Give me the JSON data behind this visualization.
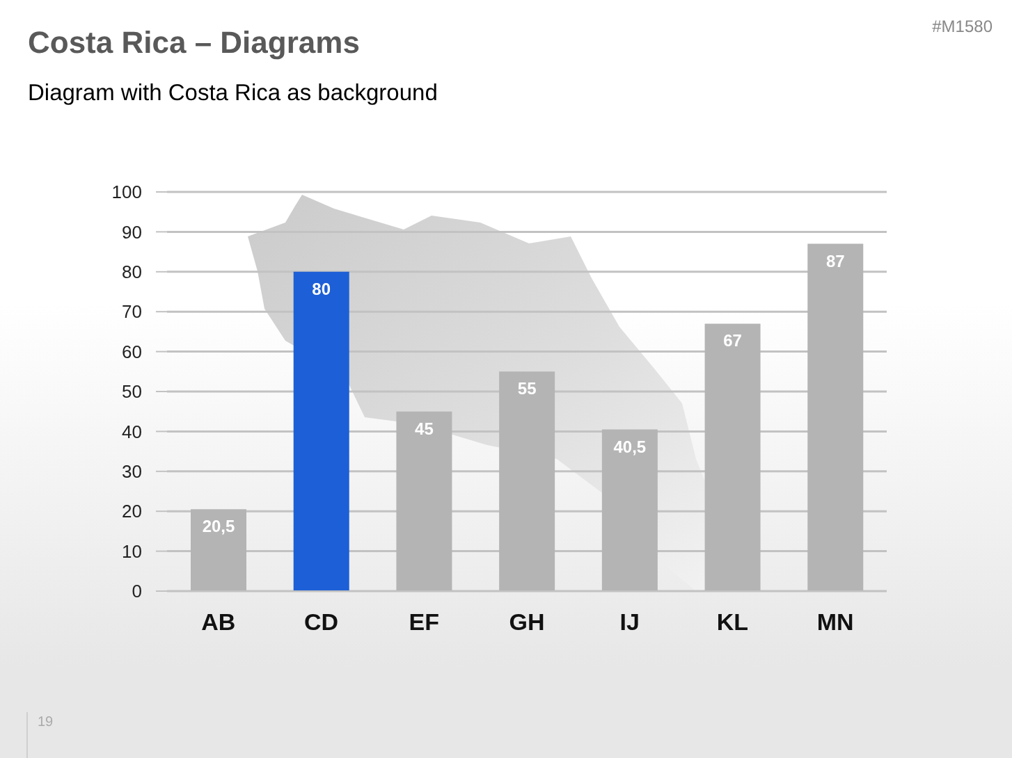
{
  "chart_data": {
    "type": "bar",
    "title": "Costa Rica – Diagrams",
    "subtitle": "Diagram with Costa Rica as background",
    "categories": [
      "AB",
      "CD",
      "EF",
      "GH",
      "IJ",
      "KL",
      "MN"
    ],
    "values": [
      20.5,
      80,
      45,
      55,
      40.5,
      67,
      87
    ],
    "colors": [
      "#b4b4b4",
      "#1d5fd6",
      "#b4b4b4",
      "#b4b4b4",
      "#b4b4b4",
      "#b4b4b4",
      "#b4b4b4"
    ],
    "value_labels": [
      "20,5",
      "80",
      "45",
      "55",
      "40,5",
      "67",
      "87"
    ],
    "ylim": [
      0,
      100
    ],
    "yticks": [
      0,
      10,
      20,
      30,
      40,
      50,
      60,
      70,
      80,
      90,
      100
    ],
    "grid": "y",
    "annotations": [
      "#M1580",
      "19"
    ]
  }
}
